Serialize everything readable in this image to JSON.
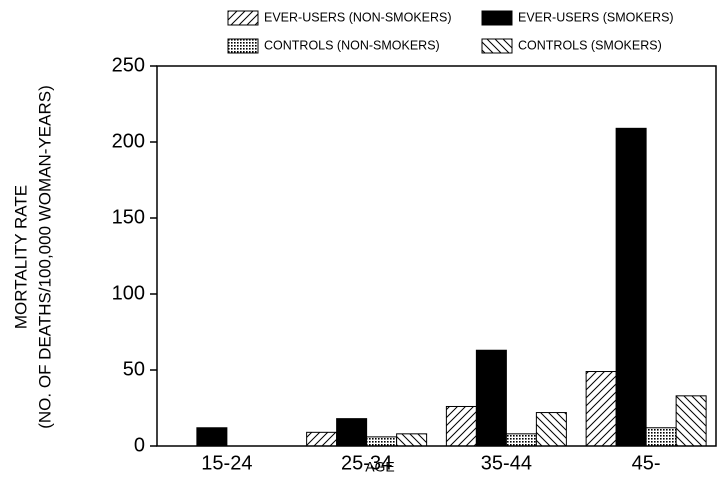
{
  "chart_data": {
    "type": "bar",
    "ylabel": [
      "MORTALITY RATE",
      "(NO. OF DEATHS/100,000 WOMAN-YEARS)"
    ],
    "xlabel": "AGE",
    "categories": [
      "15-24",
      "25-34",
      "35-44",
      "45-"
    ],
    "series": [
      {
        "name": "EVER-USERS (NON-SMOKERS)",
        "color": "#000000",
        "pattern": "forward-hatch",
        "values": [
          null,
          9,
          26,
          49
        ]
      },
      {
        "name": "EVER-USERS (SMOKERS)",
        "color": "#000000",
        "pattern": "solid",
        "values": [
          12,
          18,
          63,
          209
        ]
      },
      {
        "name": "CONTROLS (NON-SMOKERS)",
        "color": "#000000",
        "pattern": "dots",
        "values": [
          null,
          6,
          8,
          12
        ]
      },
      {
        "name": "CONTROLS (SMOKERS)",
        "color": "#000000",
        "pattern": "back-hatch",
        "values": [
          null,
          8,
          22,
          33
        ]
      }
    ],
    "ylim": [
      0,
      250
    ],
    "yticks": [
      0,
      50,
      100,
      150,
      200,
      250
    ],
    "grid": false,
    "legend": "top"
  }
}
